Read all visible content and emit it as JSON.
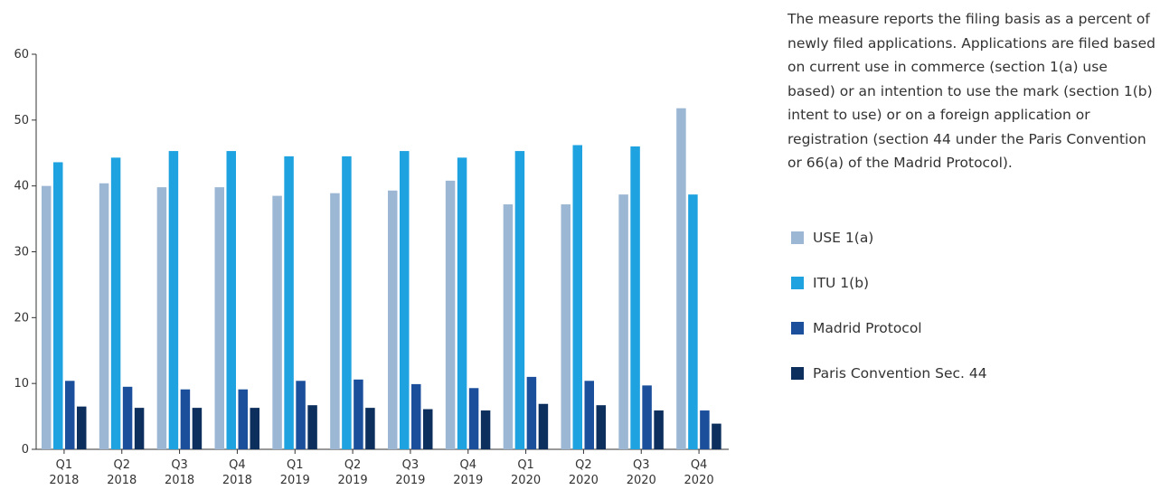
{
  "description": "The measure reports the filing basis as a percent of newly filed applications. Applications are filed based on current use in commerce (section 1(a) use based) or an intention to use the mark (section 1(b) intent to use) or on a foreign application or registration (section 44 under the Paris Convention or 66(a) of the Madrid Protocol).",
  "chart_data": {
    "type": "bar",
    "categories": [
      [
        "Q1",
        "2018"
      ],
      [
        "Q2",
        "2018"
      ],
      [
        "Q3",
        "2018"
      ],
      [
        "Q4",
        "2018"
      ],
      [
        "Q1",
        "2019"
      ],
      [
        "Q2",
        "2019"
      ],
      [
        "Q3",
        "2019"
      ],
      [
        "Q4",
        "2019"
      ],
      [
        "Q1",
        "2020"
      ],
      [
        "Q2",
        "2020"
      ],
      [
        "Q3",
        "2020"
      ],
      [
        "Q4",
        "2020"
      ]
    ],
    "series": [
      {
        "name": "USE 1(a)",
        "color": "#9bb7d4",
        "values": [
          40,
          40.4,
          39.8,
          39.8,
          38.5,
          38.9,
          39.3,
          40.8,
          37.2,
          37.2,
          38.7,
          51.8
        ]
      },
      {
        "name": "ITU 1(b)",
        "color": "#1fa3e0",
        "values": [
          43.6,
          44.3,
          45.3,
          45.3,
          44.5,
          44.5,
          45.3,
          44.3,
          45.3,
          46.2,
          46,
          38.7
        ]
      },
      {
        "name": "Madrid Protocol",
        "color": "#1b4f9c",
        "values": [
          10.4,
          9.5,
          9.1,
          9.1,
          10.4,
          10.6,
          9.9,
          9.3,
          11,
          10.4,
          9.7,
          5.9
        ]
      },
      {
        "name": "Paris Convention Sec. 44",
        "color": "#0d2f5e",
        "values": [
          6.5,
          6.3,
          6.3,
          6.3,
          6.7,
          6.3,
          6.1,
          5.9,
          6.9,
          6.7,
          5.9,
          3.9
        ]
      }
    ],
    "yticks": [
      0,
      10,
      20,
      30,
      40,
      50,
      60
    ],
    "ylim": [
      0,
      60
    ],
    "legend_position": "right",
    "grid": false
  }
}
